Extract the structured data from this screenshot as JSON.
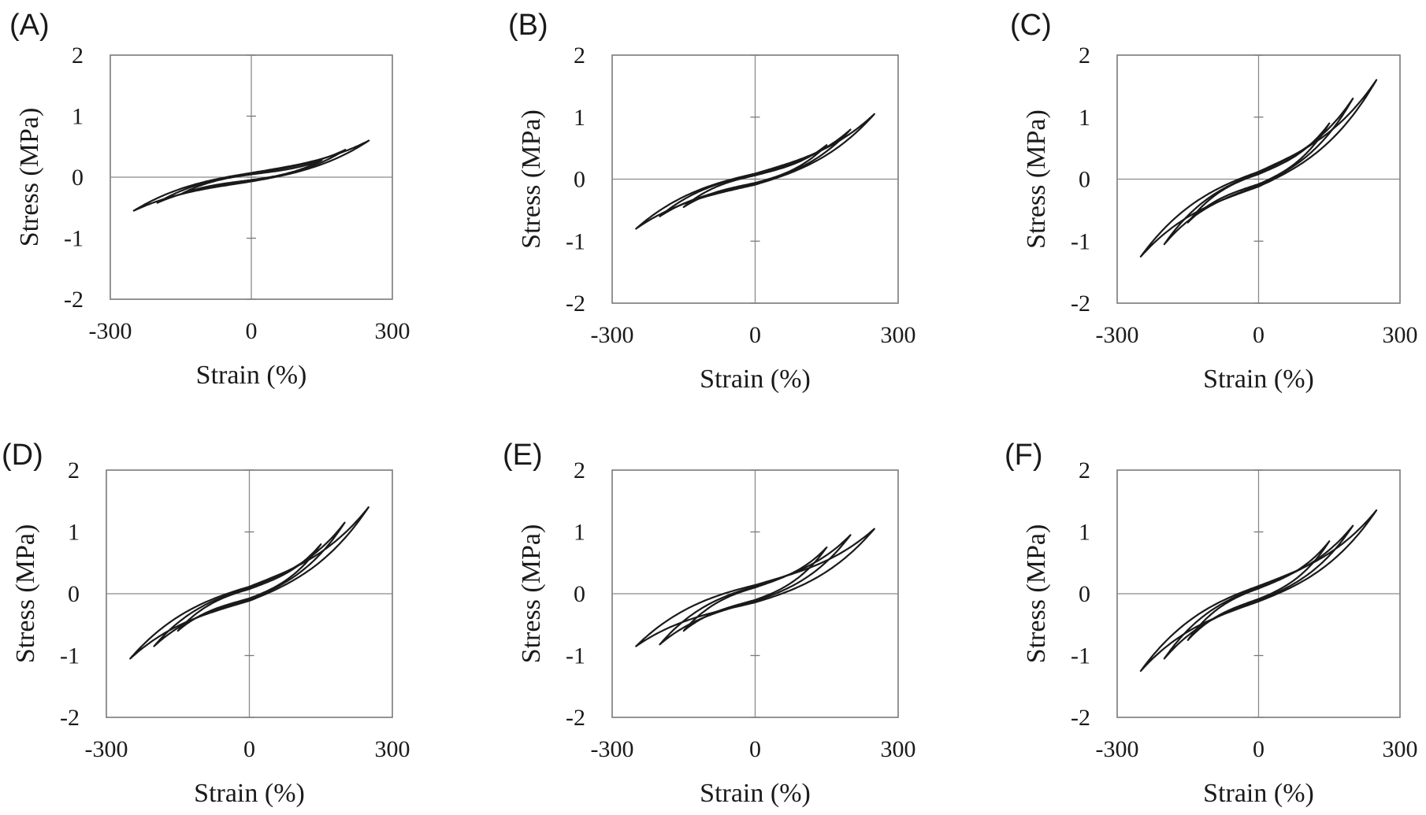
{
  "figure": {
    "panels": [
      {
        "letter": "(A)"
      },
      {
        "letter": "(B)"
      },
      {
        "letter": "(C)"
      },
      {
        "letter": "(D)"
      },
      {
        "letter": "(E)"
      },
      {
        "letter": "(F)"
      }
    ]
  },
  "chart_data": [
    {
      "type": "line",
      "panel": "(A)",
      "xlabel": "Strain (%)",
      "ylabel": "Stress (MPa)",
      "xlim": [
        -300,
        300
      ],
      "ylim": [
        -2,
        2
      ],
      "xticks": [
        "-300",
        "0",
        "300"
      ],
      "yticks": [
        "2",
        "1",
        "0",
        "-1",
        "-2"
      ],
      "grid": false,
      "cycles": [
        {
          "strain_amplitude": 150,
          "peak_stress": 0.28,
          "trough_stress": -0.28,
          "loop_width": 0.09
        },
        {
          "strain_amplitude": 200,
          "peak_stress": 0.45,
          "trough_stress": -0.42,
          "loop_width": 0.12
        },
        {
          "strain_amplitude": 250,
          "peak_stress": 0.6,
          "trough_stress": -0.55,
          "loop_width": 0.14
        }
      ]
    },
    {
      "type": "line",
      "panel": "(B)",
      "xlabel": "Strain (%)",
      "ylabel": "Stress (MPa)",
      "xlim": [
        -300,
        300
      ],
      "ylim": [
        -2,
        2
      ],
      "xticks": [
        "-300",
        "0",
        "300"
      ],
      "yticks": [
        "2",
        "1",
        "0",
        "-1",
        "-2"
      ],
      "grid": false,
      "cycles": [
        {
          "strain_amplitude": 150,
          "peak_stress": 0.55,
          "trough_stress": -0.45,
          "loop_width": 0.12
        },
        {
          "strain_amplitude": 200,
          "peak_stress": 0.8,
          "trough_stress": -0.6,
          "loop_width": 0.15
        },
        {
          "strain_amplitude": 250,
          "peak_stress": 1.05,
          "trough_stress": -0.8,
          "loop_width": 0.18
        }
      ]
    },
    {
      "type": "line",
      "panel": "(C)",
      "xlabel": "Strain (%)",
      "ylabel": "Stress (MPa)",
      "xlim": [
        -300,
        300
      ],
      "ylim": [
        -2,
        2
      ],
      "xticks": [
        "-300",
        "0",
        "300"
      ],
      "yticks": [
        "2",
        "1",
        "0",
        "-1",
        "-2"
      ],
      "grid": false,
      "cycles": [
        {
          "strain_amplitude": 150,
          "peak_stress": 0.9,
          "trough_stress": -0.7,
          "loop_width": 0.16
        },
        {
          "strain_amplitude": 200,
          "peak_stress": 1.3,
          "trough_stress": -1.05,
          "loop_width": 0.2
        },
        {
          "strain_amplitude": 250,
          "peak_stress": 1.6,
          "trough_stress": -1.25,
          "loop_width": 0.24
        }
      ]
    },
    {
      "type": "line",
      "panel": "(D)",
      "xlabel": "Strain (%)",
      "ylabel": "Stress (MPa)",
      "xlim": [
        -300,
        300
      ],
      "ylim": [
        -2,
        2
      ],
      "xticks": [
        "-300",
        "0",
        "300"
      ],
      "yticks": [
        "2",
        "1",
        "0",
        "-1",
        "-2"
      ],
      "grid": false,
      "cycles": [
        {
          "strain_amplitude": 150,
          "peak_stress": 0.8,
          "trough_stress": -0.6,
          "loop_width": 0.15
        },
        {
          "strain_amplitude": 200,
          "peak_stress": 1.15,
          "trough_stress": -0.85,
          "loop_width": 0.19
        },
        {
          "strain_amplitude": 250,
          "peak_stress": 1.4,
          "trough_stress": -1.05,
          "loop_width": 0.23
        }
      ]
    },
    {
      "type": "line",
      "panel": "(E)",
      "xlabel": "Strain (%)",
      "ylabel": "Stress (MPa)",
      "xlim": [
        -300,
        300
      ],
      "ylim": [
        -2,
        2
      ],
      "xticks": [
        "-300",
        "0",
        "300"
      ],
      "yticks": [
        "2",
        "1",
        "0",
        "-1",
        "-2"
      ],
      "grid": false,
      "cycles": [
        {
          "strain_amplitude": 150,
          "peak_stress": 0.75,
          "trough_stress": -0.6,
          "loop_width": 0.2
        },
        {
          "strain_amplitude": 200,
          "peak_stress": 0.95,
          "trough_stress": -0.82,
          "loop_width": 0.24
        },
        {
          "strain_amplitude": 250,
          "peak_stress": 1.05,
          "trough_stress": -0.85,
          "loop_width": 0.28
        }
      ]
    },
    {
      "type": "line",
      "panel": "(F)",
      "xlabel": "Strain (%)",
      "ylabel": "Stress (MPa)",
      "xlim": [
        -300,
        300
      ],
      "ylim": [
        -2,
        2
      ],
      "xticks": [
        "-300",
        "0",
        "300"
      ],
      "yticks": [
        "2",
        "1",
        "0",
        "-1",
        "-2"
      ],
      "grid": false,
      "cycles": [
        {
          "strain_amplitude": 150,
          "peak_stress": 0.85,
          "trough_stress": -0.75,
          "loop_width": 0.17
        },
        {
          "strain_amplitude": 200,
          "peak_stress": 1.1,
          "trough_stress": -1.05,
          "loop_width": 0.21
        },
        {
          "strain_amplitude": 250,
          "peak_stress": 1.35,
          "trough_stress": -1.25,
          "loop_width": 0.25
        }
      ]
    }
  ]
}
